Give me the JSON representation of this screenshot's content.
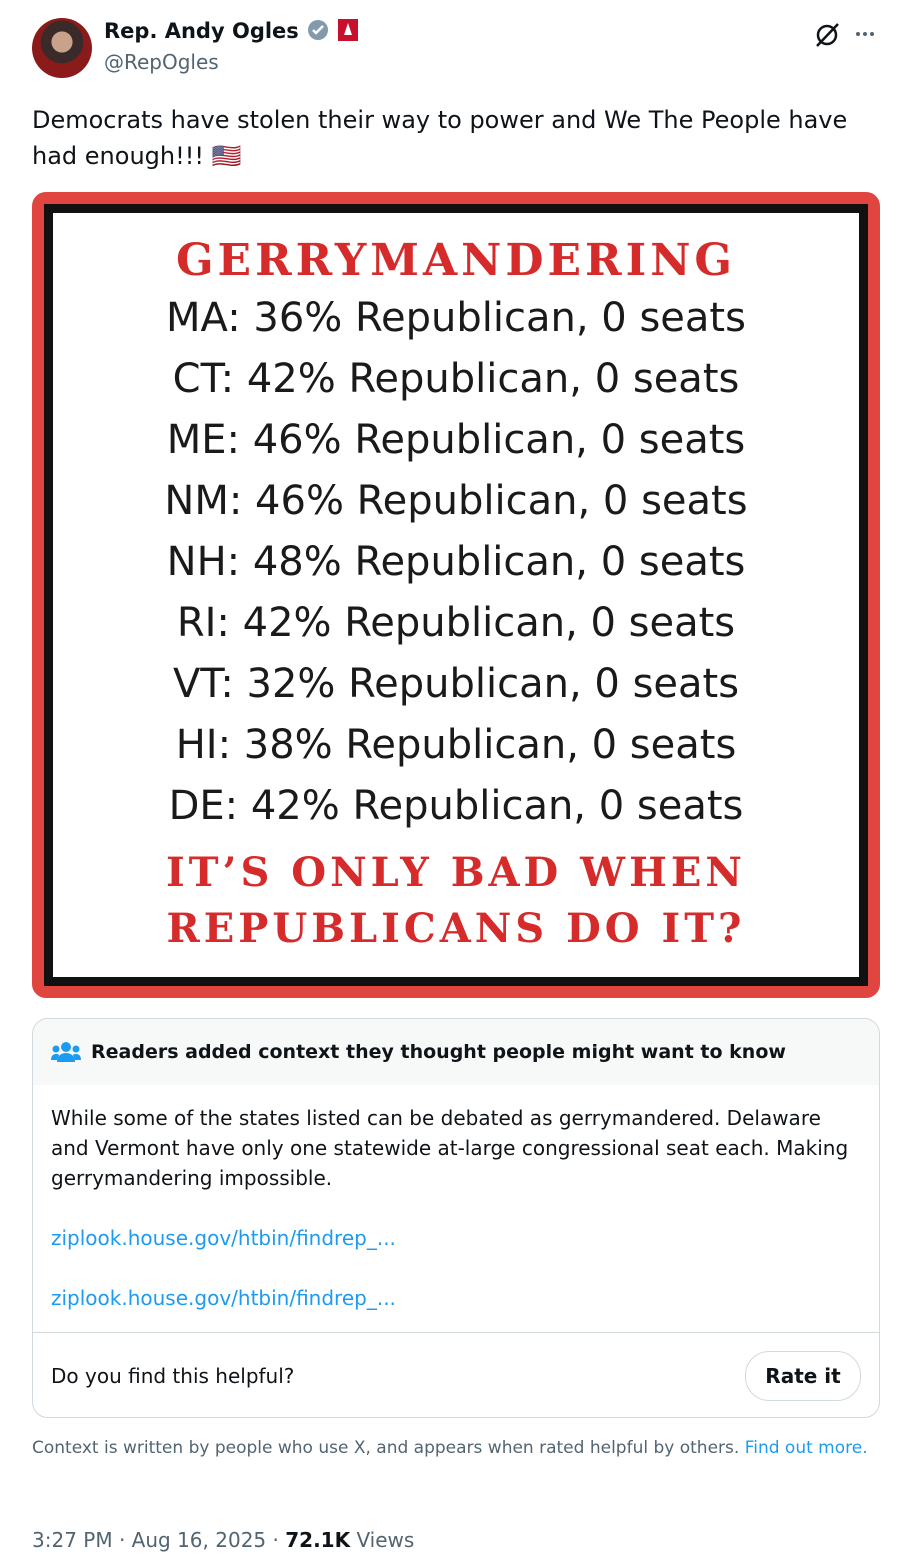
{
  "header": {
    "name": "Rep. Andy Ogles",
    "handle": "@RepOgles"
  },
  "text": "Democrats have stolen their way to power and We The People have had enough!!! 🇺🇸",
  "image": {
    "title": "GERRYMANDERING",
    "lines": [
      "MA: 36% Republican, 0 seats",
      "CT: 42% Republican, 0 seats",
      "ME: 46% Republican, 0 seats",
      "NM: 46% Republican, 0 seats",
      "NH: 48% Republican, 0 seats",
      "RI: 42% Republican, 0 seats",
      "VT: 32% Republican, 0 seats",
      "HI: 38% Republican, 0 seats",
      "DE: 42% Republican, 0 seats"
    ],
    "footer": [
      "IT’S ONLY BAD WHEN",
      "REPUBLICANS DO IT?"
    ]
  },
  "note": {
    "heading": "Readers added context they thought people might want to know",
    "body": "While some of the states listed can be debated as gerrymandered. Delaware and Vermont have only one statewide at-large congressional seat each. Making gerrymandering impossible.",
    "links": [
      "ziplook.house.gov/htbin/findrep_...",
      "ziplook.house.gov/htbin/findrep_..."
    ],
    "question": "Do you find this helpful?",
    "button": "Rate it"
  },
  "disclaimer": {
    "text": "Context is written by people who use X, and appears when rated helpful by others.",
    "link": "Find out more."
  },
  "footer": {
    "time": "3:27 PM",
    "separator": "·",
    "date": "Aug 16, 2025",
    "views_count": "72.1K",
    "views_label": "Views"
  }
}
